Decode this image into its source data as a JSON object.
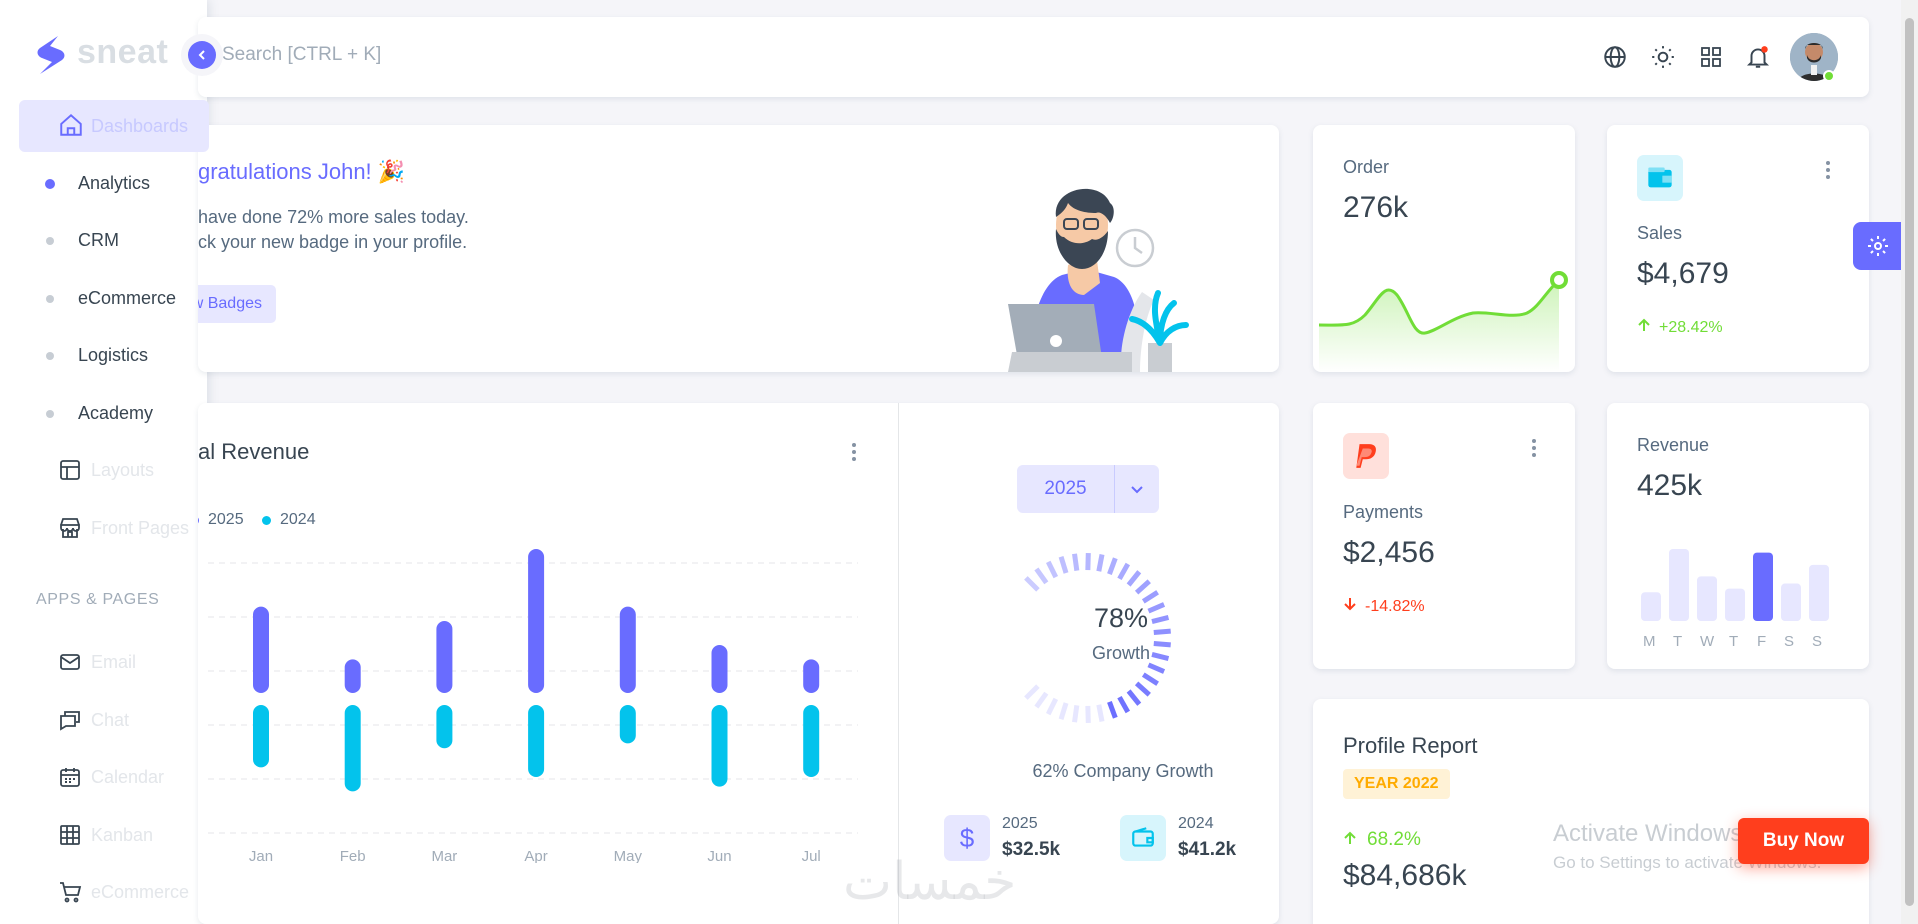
{
  "brand": {
    "name": "sneat"
  },
  "search": {
    "placeholder": "Search [CTRL + K]"
  },
  "sidebar": {
    "dashboards": "Dashboards",
    "sub_items": [
      "Analytics",
      "CRM",
      "eCommerce",
      "Logistics",
      "Academy"
    ],
    "layouts": "Layouts",
    "front_pages": "Front Pages",
    "section_apps": "APPS & PAGES",
    "apps": [
      "Email",
      "Chat",
      "Calendar",
      "Kanban",
      "eCommerce"
    ]
  },
  "congrats": {
    "title": "gratulations John! 🎉",
    "line1": "have done 72% more sales today.",
    "line2": "ck your new badge in your profile.",
    "button": "w Badges"
  },
  "revenue": {
    "title": "al Revenue",
    "legend": [
      "2025",
      "2024"
    ],
    "selected_year": "2025",
    "growth_percent": "78%",
    "growth_label": "Growth",
    "company_growth": "62% Company Growth",
    "year_a": {
      "year": "2025",
      "value": "$32.5k"
    },
    "year_b": {
      "year": "2024",
      "value": "$41.2k"
    }
  },
  "chart_data": {
    "type": "bar",
    "categories": [
      "Jan",
      "Feb",
      "Mar",
      "Apr",
      "May",
      "Jun",
      "Jul"
    ],
    "series": [
      {
        "name": "2025",
        "values": [
          18,
          7,
          15,
          30,
          18,
          10,
          7
        ]
      },
      {
        "name": "2024",
        "values": [
          -13,
          -18,
          -9,
          -15,
          -8,
          -17,
          -15
        ]
      }
    ],
    "colors": {
      "2025": "#696cff",
      "2024": "#03c3ec"
    },
    "gauge_value": 78
  },
  "order": {
    "label": "Order",
    "value": "276k"
  },
  "sales": {
    "label": "Sales",
    "value": "$4,679",
    "change": "+28.42%"
  },
  "payments": {
    "label": "Payments",
    "value": "$2,456",
    "change": "-14.82%"
  },
  "revenue_card": {
    "label": "Revenue",
    "value": "425k",
    "days": [
      "M",
      "T",
      "W",
      "T",
      "F",
      "S",
      "S"
    ],
    "bar_values": [
      40,
      100,
      62,
      45,
      95,
      52,
      78
    ],
    "highlight_index": 4
  },
  "profile": {
    "title": "Profile Report",
    "badge": "YEAR 2022",
    "change": "68.2%",
    "value": "$84,686k"
  },
  "overlay": {
    "activate_title": "Activate Windows",
    "activate_sub": "Go to Settings to activate Windows.",
    "buy_now": "Buy Now",
    "watermark": "خمسات"
  },
  "colors": {
    "primary": "#696cff",
    "info": "#03c3ec",
    "success": "#71dd37",
    "danger": "#ff3e1d",
    "warning": "#ffab00"
  }
}
